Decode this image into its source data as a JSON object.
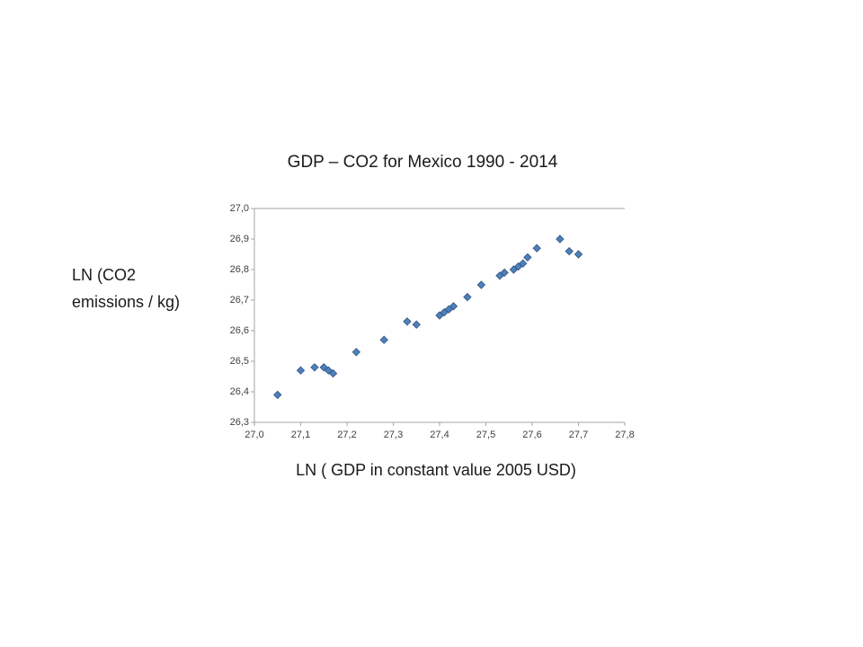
{
  "slide": {
    "title": "GDP – CO2 for Mexico 1990 - 2014",
    "y_axis_label": "LN (CO2 emissions / kg)",
    "x_axis_label": "LN ( GDP in constant value 2005 USD)"
  },
  "chart_data": {
    "type": "scatter",
    "title": "GDP – CO2 for Mexico 1990 - 2014",
    "xlabel": "LN ( GDP in constant value 2005 USD)",
    "ylabel": "LN (CO2 emissions / kg)",
    "xlim": [
      27.0,
      27.8
    ],
    "ylim": [
      26.3,
      27.0
    ],
    "x_tick_step": 0.1,
    "y_tick_step": 0.1,
    "x_tick_labels": [
      "27,0",
      "27,1",
      "27,2",
      "27,3",
      "27,4",
      "27,5",
      "27,6",
      "27,7",
      "27,8"
    ],
    "y_tick_labels": [
      "26,3",
      "26,4",
      "26,5",
      "26,6",
      "26,7",
      "26,8",
      "26,9",
      "27,0"
    ],
    "grid": false,
    "legend_position": "none",
    "marker": {
      "shape": "diamond",
      "color": "#4f81bd",
      "border": "#385d8a",
      "size": 8
    },
    "points": [
      [
        27.05,
        26.39
      ],
      [
        27.1,
        26.47
      ],
      [
        27.13,
        26.48
      ],
      [
        27.15,
        26.48
      ],
      [
        27.16,
        26.47
      ],
      [
        27.17,
        26.46
      ],
      [
        27.22,
        26.53
      ],
      [
        27.28,
        26.57
      ],
      [
        27.33,
        26.63
      ],
      [
        27.35,
        26.62
      ],
      [
        27.4,
        26.65
      ],
      [
        27.41,
        26.66
      ],
      [
        27.42,
        26.67
      ],
      [
        27.43,
        26.68
      ],
      [
        27.46,
        26.71
      ],
      [
        27.49,
        26.75
      ],
      [
        27.53,
        26.78
      ],
      [
        27.54,
        26.79
      ],
      [
        27.56,
        26.8
      ],
      [
        27.57,
        26.81
      ],
      [
        27.58,
        26.82
      ],
      [
        27.59,
        26.84
      ],
      [
        27.61,
        26.87
      ],
      [
        27.66,
        26.9
      ],
      [
        27.68,
        26.86
      ],
      [
        27.7,
        26.85
      ]
    ]
  }
}
